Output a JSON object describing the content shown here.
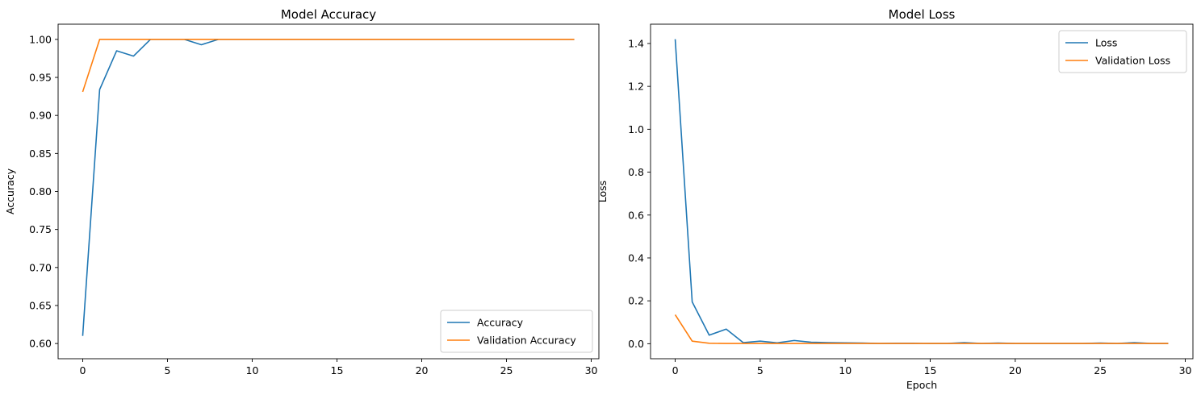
{
  "chart_data": [
    {
      "type": "line",
      "title": "Model Accuracy",
      "xlabel": "",
      "ylabel": "Accuracy",
      "xlim": [
        -1.45,
        30.45
      ],
      "ylim": [
        0.58,
        1.02
      ],
      "xticks": [
        0,
        5,
        10,
        15,
        20,
        25,
        30
      ],
      "yticks": [
        0.6,
        0.65,
        0.7,
        0.75,
        0.8,
        0.85,
        0.9,
        0.95,
        1.0
      ],
      "ytick_decimals": 2,
      "grid": false,
      "legend_position": "lower-right",
      "x": [
        0,
        1,
        2,
        3,
        4,
        5,
        6,
        7,
        8,
        9,
        10,
        11,
        12,
        13,
        14,
        15,
        16,
        17,
        18,
        19,
        20,
        21,
        22,
        23,
        24,
        25,
        26,
        27,
        28,
        29
      ],
      "series": [
        {
          "name": "Accuracy",
          "color": "#1f77b4",
          "values": [
            0.61,
            0.934,
            0.985,
            0.978,
            1.0,
            1.0,
            1.0,
            0.993,
            1.0,
            1.0,
            1.0,
            1.0,
            1.0,
            1.0,
            1.0,
            1.0,
            1.0,
            1.0,
            1.0,
            1.0,
            1.0,
            1.0,
            1.0,
            1.0,
            1.0,
            1.0,
            1.0,
            1.0,
            1.0,
            1.0
          ]
        },
        {
          "name": "Validation Accuracy",
          "color": "#ff7f0e",
          "values": [
            0.931,
            1.0,
            1.0,
            1.0,
            1.0,
            1.0,
            1.0,
            1.0,
            1.0,
            1.0,
            1.0,
            1.0,
            1.0,
            1.0,
            1.0,
            1.0,
            1.0,
            1.0,
            1.0,
            1.0,
            1.0,
            1.0,
            1.0,
            1.0,
            1.0,
            1.0,
            1.0,
            1.0,
            1.0,
            1.0
          ]
        }
      ]
    },
    {
      "type": "line",
      "title": "Model Loss",
      "xlabel": "Epoch",
      "ylabel": "Loss",
      "xlim": [
        -1.45,
        30.45
      ],
      "ylim": [
        -0.07,
        1.49
      ],
      "xticks": [
        0,
        5,
        10,
        15,
        20,
        25,
        30
      ],
      "yticks": [
        0.0,
        0.2,
        0.4,
        0.6,
        0.8,
        1.0,
        1.2,
        1.4
      ],
      "ytick_decimals": 1,
      "grid": false,
      "legend_position": "upper-right",
      "x": [
        0,
        1,
        2,
        3,
        4,
        5,
        6,
        7,
        8,
        9,
        10,
        11,
        12,
        13,
        14,
        15,
        16,
        17,
        18,
        19,
        20,
        21,
        22,
        23,
        24,
        25,
        26,
        27,
        28,
        29
      ],
      "series": [
        {
          "name": "Loss",
          "color": "#1f77b4",
          "values": [
            1.42,
            0.195,
            0.04,
            0.068,
            0.005,
            0.012,
            0.004,
            0.015,
            0.007,
            0.005,
            0.004,
            0.003,
            0.001,
            0.002,
            0.002,
            0.001,
            0.001,
            0.005,
            0.001,
            0.003,
            0.001,
            0.001,
            0.001,
            0.001,
            0.001,
            0.003,
            0.001,
            0.005,
            0.001,
            0.001
          ]
        },
        {
          "name": "Validation Loss",
          "color": "#ff7f0e",
          "values": [
            0.135,
            0.012,
            0.002,
            0.001,
            0.001,
            0.001,
            0.001,
            0.001,
            0.001,
            0.001,
            0.001,
            0.001,
            0.001,
            0.001,
            0.001,
            0.001,
            0.001,
            0.001,
            0.001,
            0.001,
            0.001,
            0.001,
            0.001,
            0.001,
            0.001,
            0.001,
            0.001,
            0.001,
            0.001,
            0.001
          ]
        }
      ]
    }
  ]
}
